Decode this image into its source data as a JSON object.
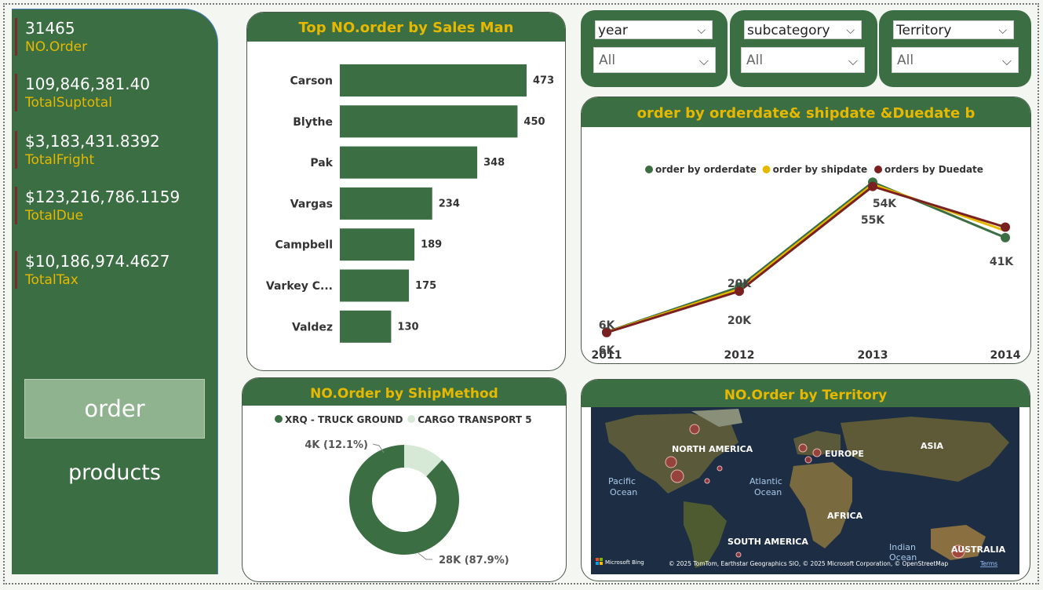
{
  "kpis": [
    {
      "value": "31465",
      "label": "NO.Order"
    },
    {
      "value": "109,846,381.40",
      "label": "TotalSuptotal"
    },
    {
      "value": "$3,183,431.8392",
      "label": "TotalFright"
    },
    {
      "value": "$123,216,786.1159",
      "label": "TotalDue"
    },
    {
      "value": "$10,186,974.4627",
      "label": "TotalTax"
    }
  ],
  "nav": {
    "order": "order",
    "products": "products"
  },
  "filters": [
    {
      "label": "year",
      "value": "All"
    },
    {
      "label": "subcategory",
      "value": "All"
    },
    {
      "label": "Territory",
      "value": "All"
    }
  ],
  "colors": {
    "green": "#3b6e43",
    "gold": "#e6b800",
    "maroon": "#7a2020",
    "light_green": "#d6e8d6"
  },
  "chart_data": [
    {
      "type": "bar",
      "title": "Top NO.order by Sales Man",
      "categories": [
        "Carson",
        "Blythe",
        "Pak",
        "Vargas",
        "Campbell",
        "Varkey C...",
        "Valdez"
      ],
      "values": [
        473,
        450,
        348,
        234,
        189,
        175,
        130
      ],
      "data_labels": [
        "473",
        "450",
        "348",
        "234",
        "189",
        "175",
        "130"
      ]
    },
    {
      "type": "line",
      "title": "order by orderdate& shipdate &Duedate b",
      "x": [
        "2011",
        "2012",
        "2013",
        "2014"
      ],
      "series": [
        {
          "name": "order by orderdate",
          "color": "#3b6e43",
          "values": [
            6000,
            21000,
            56000,
            37500
          ]
        },
        {
          "name": "order by shipdate",
          "color": "#e6b800",
          "values": [
            5900,
            20300,
            55300,
            39800
          ]
        },
        {
          "name": "orders by Duedate",
          "color": "#7a2020",
          "values": [
            5800,
            19600,
            54600,
            41000
          ]
        }
      ],
      "point_labels": [
        {
          "text": "6K"
        },
        {
          "text": "6K"
        },
        {
          "text": "20K"
        },
        {
          "text": "20K"
        },
        {
          "text": "54K"
        },
        {
          "text": "55K"
        },
        {
          "text": "41K"
        }
      ],
      "legend": "top"
    },
    {
      "type": "pie",
      "title": "NO.Order by ShipMethod",
      "categories": [
        "XRQ - TRUCK GROUND",
        "CARGO TRANSPORT 5"
      ],
      "values": [
        87.9,
        12.1
      ],
      "data_labels": [
        "28K (87.9%)",
        "4K (12.1%)"
      ],
      "colors": [
        "#3b6e43",
        "#d6e8d6"
      ],
      "legend": "top"
    }
  ],
  "map": {
    "title": "NO.Order by Territory",
    "labels": {
      "north_america": "NORTH AMERICA",
      "europe": "EUROPE",
      "asia": "ASIA",
      "pacific": "Pacific",
      "pacific2": "Ocean",
      "atlantic": "Atlantic",
      "atlantic2": "Ocean",
      "africa": "AFRICA",
      "south_america": "SOUTH AMERICA",
      "indian": "Indian",
      "indian2": "Ocean",
      "australia": "AUSTRALIA"
    },
    "attribution": "© 2025 TomTom, Earthstar Geographics SIO, © 2025 Microsoft Corporation, © OpenStreetMap",
    "terms": "Terms",
    "bing": "Microsoft Bing"
  }
}
